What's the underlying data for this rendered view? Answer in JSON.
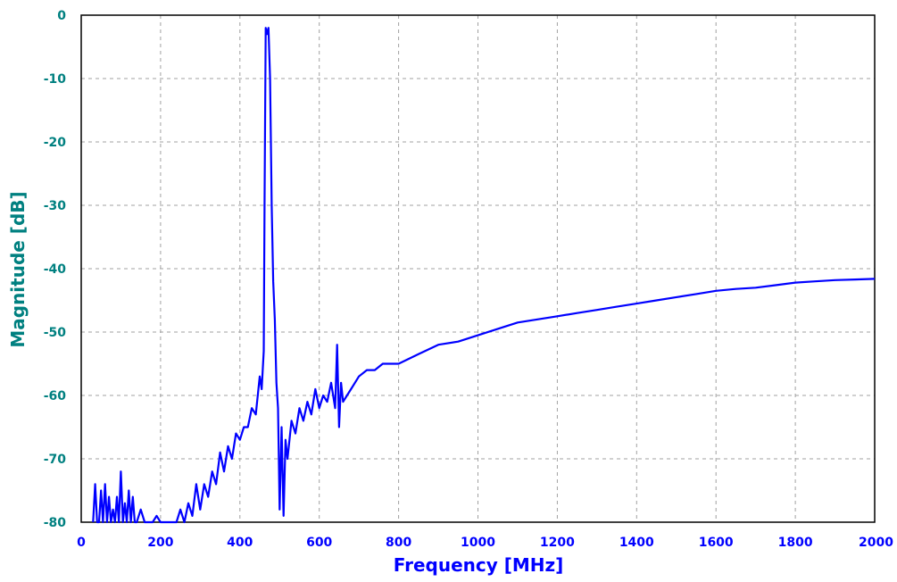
{
  "colors": {
    "series": "#0000ff",
    "x_axis_text": "#0000ff",
    "y_axis_text": "#008080",
    "grid": "#a0a0a0",
    "frame": "#000000",
    "background": "#ffffff"
  },
  "chart_data": {
    "type": "line",
    "title": "",
    "xlabel": "Frequency [MHz]",
    "ylabel": "Magnitude [dB]",
    "xlim": [
      0,
      2000
    ],
    "ylim": [
      -80,
      0
    ],
    "x_ticks": [
      0,
      200,
      400,
      600,
      800,
      1000,
      1200,
      1400,
      1600,
      1800,
      2000
    ],
    "y_ticks": [
      0,
      -10,
      -20,
      -30,
      -40,
      -50,
      -60,
      -70,
      -80
    ],
    "x_tick_labels": [
      "0",
      "200",
      "400",
      "600",
      "800",
      "1000",
      "1200",
      "1400",
      "1600",
      "1800",
      "2000"
    ],
    "y_tick_labels": [
      "0",
      "-10",
      "-20",
      "-30",
      "-40",
      "-50",
      "-60",
      "-70",
      "-80"
    ],
    "grid": true,
    "legend": "none",
    "series": [
      {
        "x": [
          30,
          35,
          40,
          45,
          50,
          55,
          60,
          65,
          70,
          75,
          80,
          85,
          90,
          95,
          100,
          105,
          110,
          115,
          120,
          125,
          130,
          135,
          140,
          150,
          160,
          170,
          180,
          190,
          200,
          210,
          220,
          230,
          240,
          250,
          260,
          270,
          280,
          290,
          300,
          310,
          320,
          330,
          340,
          350,
          360,
          370,
          380,
          390,
          400,
          410,
          420,
          430,
          440,
          450,
          455,
          460,
          462,
          465,
          468,
          472,
          476,
          480,
          484,
          488,
          492,
          496,
          500,
          505,
          510,
          515,
          520,
          530,
          540,
          550,
          560,
          570,
          580,
          590,
          600,
          610,
          620,
          630,
          640,
          645,
          650,
          655,
          660,
          670,
          680,
          690,
          700,
          720,
          740,
          760,
          780,
          800,
          850,
          900,
          950,
          1000,
          1050,
          1100,
          1150,
          1200,
          1250,
          1300,
          1350,
          1400,
          1450,
          1500,
          1550,
          1600,
          1650,
          1700,
          1750,
          1800,
          1850,
          1900,
          1950,
          2000
        ],
        "y": [
          -80,
          -74,
          -80,
          -80,
          -75,
          -80,
          -74,
          -80,
          -76,
          -80,
          -78,
          -80,
          -76,
          -80,
          -72,
          -80,
          -77,
          -80,
          -75,
          -80,
          -76,
          -80,
          -80,
          -78,
          -80,
          -80,
          -80,
          -79,
          -80,
          -80,
          -80,
          -80,
          -80,
          -78,
          -80,
          -77,
          -79,
          -74,
          -78,
          -74,
          -76,
          -72,
          -74,
          -69,
          -72,
          -68,
          -70,
          -66,
          -67,
          -65,
          -65,
          -62,
          -63,
          -57,
          -59,
          -53,
          -30,
          -2,
          -3,
          -2,
          -10,
          -30,
          -42,
          -48,
          -58,
          -62,
          -78,
          -65,
          -79,
          -67,
          -70,
          -64,
          -66,
          -62,
          -64,
          -61,
          -63,
          -59,
          -62,
          -60,
          -61,
          -58,
          -62,
          -52,
          -65,
          -58,
          -61,
          -60,
          -59,
          -58,
          -57,
          -56,
          -56,
          -55,
          -55,
          -55,
          -53.5,
          -52,
          -51.5,
          -50.5,
          -49.5,
          -48.5,
          -48,
          -47.5,
          -47,
          -46.5,
          -46,
          -45.5,
          -45,
          -44.5,
          -44,
          -43.5,
          -43.2,
          -43,
          -42.6,
          -42.2,
          -42,
          -41.8,
          -41.7,
          -41.6
        ]
      }
    ]
  }
}
